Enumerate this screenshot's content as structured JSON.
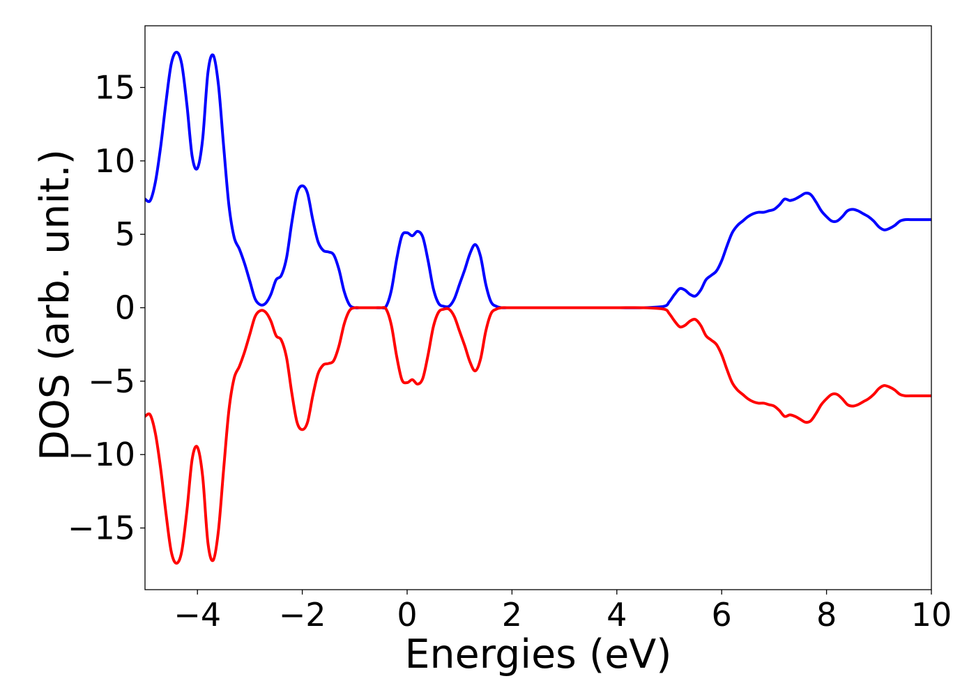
{
  "chart_data": {
    "type": "line",
    "title": "",
    "xlabel": "Energies (eV)",
    "ylabel": "DOS (arb. unit.)",
    "xlim": [
      -5,
      10
    ],
    "ylim": [
      -19.2,
      19.2
    ],
    "x_ticks": [
      {
        "value": -4,
        "label": "−4"
      },
      {
        "value": -2,
        "label": "−2"
      },
      {
        "value": 0,
        "label": "0"
      },
      {
        "value": 2,
        "label": "2"
      },
      {
        "value": 4,
        "label": "4"
      },
      {
        "value": 6,
        "label": "6"
      },
      {
        "value": 8,
        "label": "8"
      },
      {
        "value": 10,
        "label": "10"
      }
    ],
    "y_ticks": [
      {
        "value": 15,
        "label": "15"
      },
      {
        "value": 10,
        "label": "10"
      },
      {
        "value": 5,
        "label": "5"
      },
      {
        "value": 0,
        "label": "0"
      },
      {
        "value": -5,
        "label": "−5"
      },
      {
        "value": -10,
        "label": "−10"
      },
      {
        "value": -15,
        "label": "−15"
      }
    ],
    "grid": false,
    "legend": "none",
    "x": [
      -5.0,
      -4.9,
      -4.8,
      -4.7,
      -4.6,
      -4.5,
      -4.4,
      -4.3,
      -4.2,
      -4.1,
      -4.0,
      -3.9,
      -3.8,
      -3.7,
      -3.6,
      -3.5,
      -3.4,
      -3.3,
      -3.2,
      -3.1,
      -3.0,
      -2.9,
      -2.8,
      -2.7,
      -2.6,
      -2.5,
      -2.4,
      -2.3,
      -2.2,
      -2.1,
      -2.0,
      -1.9,
      -1.8,
      -1.7,
      -1.6,
      -1.5,
      -1.4,
      -1.3,
      -1.2,
      -1.1,
      -1.0,
      -0.9,
      -0.8,
      -0.7,
      -0.6,
      -0.5,
      -0.4,
      -0.3,
      -0.2,
      -0.1,
      0.0,
      0.1,
      0.2,
      0.3,
      0.4,
      0.5,
      0.6,
      0.7,
      0.8,
      0.9,
      1.0,
      1.1,
      1.2,
      1.3,
      1.4,
      1.5,
      1.6,
      1.7,
      1.8,
      1.9,
      2.0,
      2.1,
      2.2,
      2.3,
      2.4,
      2.5,
      2.6,
      2.7,
      2.8,
      2.9,
      3.0,
      3.5,
      4.0,
      4.5,
      4.9,
      5.0,
      5.1,
      5.2,
      5.3,
      5.4,
      5.5,
      5.6,
      5.7,
      5.8,
      5.9,
      6.0,
      6.1,
      6.2,
      6.3,
      6.4,
      6.5,
      6.6,
      6.7,
      6.8,
      6.9,
      7.0,
      7.1,
      7.2,
      7.3,
      7.4,
      7.5,
      7.6,
      7.7,
      7.8,
      7.9,
      8.0,
      8.1,
      8.2,
      8.3,
      8.4,
      8.5,
      8.6,
      8.7,
      8.8,
      8.9,
      9.0,
      9.1,
      9.2,
      9.3,
      9.4,
      9.5,
      9.6,
      9.7,
      9.8,
      9.9,
      10.0
    ],
    "series": [
      {
        "color": "#0000ff",
        "values": [
          7.4,
          7.3,
          8.6,
          11.0,
          14.0,
          16.6,
          17.4,
          16.6,
          13.8,
          10.3,
          9.5,
          11.5,
          16.0,
          17.2,
          15.2,
          11.0,
          7.0,
          4.8,
          4.0,
          3.0,
          1.8,
          0.6,
          0.2,
          0.3,
          0.9,
          1.9,
          2.2,
          3.4,
          5.8,
          7.8,
          8.3,
          7.8,
          6.0,
          4.5,
          3.9,
          3.8,
          3.6,
          2.6,
          1.1,
          0.2,
          0.0,
          0.0,
          0.0,
          0.0,
          0.0,
          0.0,
          0.1,
          1.2,
          3.3,
          4.9,
          5.1,
          4.9,
          5.2,
          4.8,
          3.2,
          1.3,
          0.3,
          0.1,
          0.1,
          0.6,
          1.6,
          2.6,
          3.7,
          4.3,
          3.5,
          1.6,
          0.4,
          0.1,
          0.0,
          0.0,
          0.0,
          0.0,
          0.0,
          0.0,
          0.0,
          0.0,
          0.0,
          0.0,
          0.0,
          0.0,
          0.0,
          0.0,
          0.0,
          0.0,
          0.1,
          0.4,
          0.9,
          1.3,
          1.2,
          0.9,
          0.8,
          1.2,
          1.9,
          2.2,
          2.5,
          3.2,
          4.2,
          5.1,
          5.6,
          5.9,
          6.2,
          6.4,
          6.5,
          6.5,
          6.6,
          6.7,
          7.0,
          7.4,
          7.3,
          7.4,
          7.6,
          7.8,
          7.7,
          7.2,
          6.6,
          6.2,
          5.9,
          5.9,
          6.2,
          6.6,
          6.7,
          6.6,
          6.4,
          6.2,
          5.9,
          5.5,
          5.3,
          5.4,
          5.6,
          5.9,
          6.0,
          6.0,
          6.0,
          6.0,
          6.0,
          6.0
        ]
      },
      {
        "color": "#ff0000",
        "values": [
          -7.4,
          -7.3,
          -8.6,
          -11.0,
          -14.0,
          -16.6,
          -17.4,
          -16.6,
          -13.8,
          -10.3,
          -9.5,
          -11.5,
          -16.0,
          -17.2,
          -15.2,
          -11.0,
          -7.0,
          -4.8,
          -4.0,
          -3.0,
          -1.8,
          -0.6,
          -0.2,
          -0.3,
          -0.9,
          -1.9,
          -2.2,
          -3.4,
          -5.8,
          -7.8,
          -8.3,
          -7.8,
          -6.0,
          -4.5,
          -3.9,
          -3.8,
          -3.6,
          -2.6,
          -1.1,
          -0.2,
          0.0,
          0.0,
          0.0,
          0.0,
          0.0,
          0.0,
          -0.1,
          -1.2,
          -3.3,
          -4.9,
          -5.1,
          -4.9,
          -5.2,
          -4.8,
          -3.2,
          -1.3,
          -0.3,
          -0.1,
          -0.1,
          -0.6,
          -1.6,
          -2.6,
          -3.7,
          -4.3,
          -3.5,
          -1.6,
          -0.4,
          -0.1,
          0.0,
          0.0,
          0.0,
          0.0,
          0.0,
          0.0,
          0.0,
          0.0,
          0.0,
          0.0,
          0.0,
          0.0,
          0.0,
          0.0,
          0.0,
          0.0,
          -0.1,
          -0.4,
          -0.9,
          -1.3,
          -1.2,
          -0.9,
          -0.8,
          -1.2,
          -1.9,
          -2.2,
          -2.5,
          -3.2,
          -4.2,
          -5.1,
          -5.6,
          -5.9,
          -6.2,
          -6.4,
          -6.5,
          -6.5,
          -6.6,
          -6.7,
          -7.0,
          -7.4,
          -7.3,
          -7.4,
          -7.6,
          -7.8,
          -7.7,
          -7.2,
          -6.6,
          -6.2,
          -5.9,
          -5.9,
          -6.2,
          -6.6,
          -6.7,
          -6.6,
          -6.4,
          -6.2,
          -5.9,
          -5.5,
          -5.3,
          -5.4,
          -5.6,
          -5.9,
          -6.0,
          -6.0,
          -6.0,
          -6.0,
          -6.0,
          -6.0
        ]
      }
    ]
  }
}
